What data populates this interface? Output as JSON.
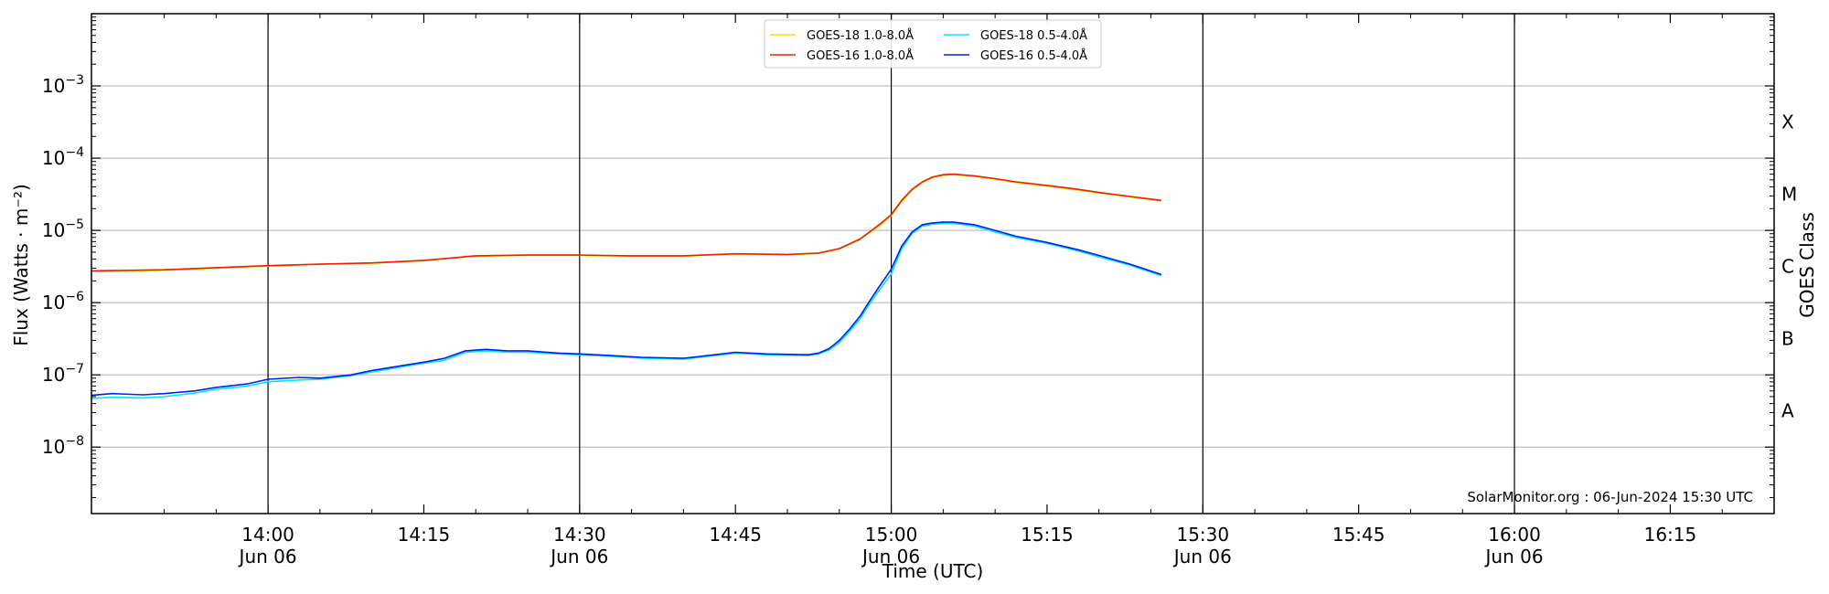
{
  "chart_data": {
    "type": "line",
    "xlabel": "Time (UTC)",
    "ylabel": "Flux (Watts · m⁻²)",
    "right_label": "GOES Class",
    "credit": "SolarMonitor.org : 06-Jun-2024 15:30 UTC",
    "x_range": [
      "13:43",
      "16:25"
    ],
    "y_range": [
      1.2e-09,
      0.01
    ],
    "y_scale": "log",
    "y_ticks": [
      {
        "value": 1e-08,
        "base": "10",
        "exp": "−8"
      },
      {
        "value": 1e-07,
        "base": "10",
        "exp": "−7"
      },
      {
        "value": 1e-06,
        "base": "10",
        "exp": "−6"
      },
      {
        "value": 1e-05,
        "base": "10",
        "exp": "−5"
      },
      {
        "value": 0.0001,
        "base": "10",
        "exp": "−4"
      },
      {
        "value": 0.001,
        "base": "10",
        "exp": "−3"
      }
    ],
    "x_ticks": [
      {
        "time": "14:00",
        "label": "14:00",
        "sub": "Jun 06",
        "vline": true
      },
      {
        "time": "14:15",
        "label": "14:15",
        "sub": "",
        "vline": false
      },
      {
        "time": "14:30",
        "label": "14:30",
        "sub": "Jun 06",
        "vline": true
      },
      {
        "time": "14:45",
        "label": "14:45",
        "sub": "",
        "vline": false
      },
      {
        "time": "15:00",
        "label": "15:00",
        "sub": "Jun 06",
        "vline": true
      },
      {
        "time": "15:15",
        "label": "15:15",
        "sub": "",
        "vline": false
      },
      {
        "time": "15:30",
        "label": "15:30",
        "sub": "Jun 06",
        "vline": true
      },
      {
        "time": "15:45",
        "label": "15:45",
        "sub": "",
        "vline": false
      },
      {
        "time": "16:00",
        "label": "16:00",
        "sub": "Jun 06",
        "vline": true
      },
      {
        "time": "16:15",
        "label": "16:15",
        "sub": "",
        "vline": false
      }
    ],
    "classes": [
      {
        "label": "A",
        "value": 3.16e-08
      },
      {
        "label": "B",
        "value": 3.16e-07
      },
      {
        "label": "C",
        "value": 3.16e-06
      },
      {
        "label": "M",
        "value": 3.16e-05
      },
      {
        "label": "X",
        "value": 0.000316
      }
    ],
    "grid": "horizontal",
    "legend_position": "top-center",
    "legend": [
      {
        "series": 0,
        "label": "GOES-18 1.0-8.0Å"
      },
      {
        "series": 2,
        "label": "GOES-18 0.5-4.0Å"
      },
      {
        "series": 1,
        "label": "GOES-16 1.0-8.0Å"
      },
      {
        "series": 3,
        "label": "GOES-16 0.5-4.0Å"
      }
    ],
    "series": [
      {
        "name": "GOES-18 1.0-8.0Å",
        "color": "#ffd700",
        "points": [
          [
            "13:43",
            2.7e-06
          ],
          [
            "13:50",
            2.8e-06
          ],
          [
            "13:55",
            3e-06
          ],
          [
            "14:00",
            3.2e-06
          ],
          [
            "14:05",
            3.4e-06
          ],
          [
            "14:10",
            3.5e-06
          ],
          [
            "14:15",
            3.8e-06
          ],
          [
            "14:20",
            4.4e-06
          ],
          [
            "14:25",
            4.5e-06
          ],
          [
            "14:30",
            4.5e-06
          ],
          [
            "14:35",
            4.4e-06
          ],
          [
            "14:40",
            4.4e-06
          ],
          [
            "14:45",
            4.7e-06
          ],
          [
            "14:50",
            4.6e-06
          ],
          [
            "14:53",
            4.8e-06
          ],
          [
            "14:55",
            5.5e-06
          ],
          [
            "14:57",
            7.5e-06
          ],
          [
            "14:59",
            1.2e-05
          ],
          [
            "15:00",
            1.6e-05
          ],
          [
            "15:01",
            2.5e-05
          ],
          [
            "15:02",
            3.6e-05
          ],
          [
            "15:03",
            4.6e-05
          ],
          [
            "15:04",
            5.4e-05
          ],
          [
            "15:05",
            5.8e-05
          ],
          [
            "15:06",
            5.9e-05
          ],
          [
            "15:08",
            5.6e-05
          ],
          [
            "15:10",
            5.1e-05
          ],
          [
            "15:12",
            4.6e-05
          ],
          [
            "15:15",
            4.1e-05
          ],
          [
            "15:18",
            3.6e-05
          ],
          [
            "15:20",
            3.3e-05
          ],
          [
            "15:23",
            2.9e-05
          ],
          [
            "15:26",
            2.55e-05
          ]
        ]
      },
      {
        "name": "GOES-16 1.0-8.0Å",
        "color": "#e8200c",
        "points": [
          [
            "13:43",
            2.75e-06
          ],
          [
            "13:50",
            2.85e-06
          ],
          [
            "13:55",
            3.05e-06
          ],
          [
            "14:00",
            3.25e-06
          ],
          [
            "14:05",
            3.4e-06
          ],
          [
            "14:10",
            3.55e-06
          ],
          [
            "14:15",
            3.85e-06
          ],
          [
            "14:20",
            4.45e-06
          ],
          [
            "14:25",
            4.55e-06
          ],
          [
            "14:30",
            4.55e-06
          ],
          [
            "14:35",
            4.45e-06
          ],
          [
            "14:40",
            4.45e-06
          ],
          [
            "14:45",
            4.75e-06
          ],
          [
            "14:50",
            4.65e-06
          ],
          [
            "14:53",
            4.85e-06
          ],
          [
            "14:55",
            5.6e-06
          ],
          [
            "14:57",
            7.6e-06
          ],
          [
            "14:59",
            1.25e-05
          ],
          [
            "15:00",
            1.65e-05
          ],
          [
            "15:01",
            2.6e-05
          ],
          [
            "15:02",
            3.7e-05
          ],
          [
            "15:03",
            4.7e-05
          ],
          [
            "15:04",
            5.5e-05
          ],
          [
            "15:05",
            5.9e-05
          ],
          [
            "15:06",
            6e-05
          ],
          [
            "15:08",
            5.7e-05
          ],
          [
            "15:10",
            5.2e-05
          ],
          [
            "15:12",
            4.7e-05
          ],
          [
            "15:15",
            4.2e-05
          ],
          [
            "15:18",
            3.7e-05
          ],
          [
            "15:20",
            3.35e-05
          ],
          [
            "15:23",
            2.95e-05
          ],
          [
            "15:26",
            2.6e-05
          ]
        ]
      },
      {
        "name": "GOES-18 0.5-4.0Å",
        "color": "#00e5ff",
        "points": [
          [
            "13:43",
            4.7e-08
          ],
          [
            "13:45",
            4.9e-08
          ],
          [
            "13:48",
            4.8e-08
          ],
          [
            "13:50",
            5e-08
          ],
          [
            "13:53",
            5.6e-08
          ],
          [
            "13:55",
            6.3e-08
          ],
          [
            "13:58",
            7e-08
          ],
          [
            "14:00",
            8e-08
          ],
          [
            "14:03",
            8.5e-08
          ],
          [
            "14:05",
            8.7e-08
          ],
          [
            "14:08",
            9.8e-08
          ],
          [
            "14:10",
            1.1e-07
          ],
          [
            "14:13",
            1.3e-07
          ],
          [
            "14:15",
            1.45e-07
          ],
          [
            "14:17",
            1.6e-07
          ],
          [
            "14:19",
            2.05e-07
          ],
          [
            "14:21",
            2.15e-07
          ],
          [
            "14:23",
            2.05e-07
          ],
          [
            "14:25",
            2.05e-07
          ],
          [
            "14:28",
            1.95e-07
          ],
          [
            "14:30",
            1.9e-07
          ],
          [
            "14:33",
            1.8e-07
          ],
          [
            "14:36",
            1.7e-07
          ],
          [
            "14:40",
            1.65e-07
          ],
          [
            "14:43",
            1.85e-07
          ],
          [
            "14:45",
            2e-07
          ],
          [
            "14:48",
            1.9e-07
          ],
          [
            "14:52",
            1.85e-07
          ],
          [
            "14:53",
            1.95e-07
          ],
          [
            "14:54",
            2.2e-07
          ],
          [
            "14:55",
            2.8e-07
          ],
          [
            "14:56",
            4e-07
          ],
          [
            "14:57",
            6e-07
          ],
          [
            "14:58",
            1e-06
          ],
          [
            "14:59",
            1.6e-06
          ],
          [
            "15:00",
            2.5e-06
          ],
          [
            "15:01",
            5.5e-06
          ],
          [
            "15:02",
            9e-06
          ],
          [
            "15:03",
            1.15e-05
          ],
          [
            "15:04",
            1.22e-05
          ],
          [
            "15:05",
            1.25e-05
          ],
          [
            "15:06",
            1.25e-05
          ],
          [
            "15:08",
            1.15e-05
          ],
          [
            "15:10",
            9.5e-06
          ],
          [
            "15:12",
            8e-06
          ],
          [
            "15:15",
            6.6e-06
          ],
          [
            "15:18",
            5.2e-06
          ],
          [
            "15:20",
            4.3e-06
          ],
          [
            "15:23",
            3.3e-06
          ],
          [
            "15:26",
            2.35e-06
          ]
        ]
      },
      {
        "name": "GOES-16 0.5-4.0Å",
        "color": "#0022ee",
        "points": [
          [
            "13:43",
            5.2e-08
          ],
          [
            "13:45",
            5.5e-08
          ],
          [
            "13:48",
            5.3e-08
          ],
          [
            "13:50",
            5.5e-08
          ],
          [
            "13:53",
            6e-08
          ],
          [
            "13:55",
            6.7e-08
          ],
          [
            "13:58",
            7.5e-08
          ],
          [
            "14:00",
            8.7e-08
          ],
          [
            "14:03",
            9.2e-08
          ],
          [
            "14:05",
            9e-08
          ],
          [
            "14:08",
            1e-07
          ],
          [
            "14:10",
            1.15e-07
          ],
          [
            "14:13",
            1.35e-07
          ],
          [
            "14:15",
            1.5e-07
          ],
          [
            "14:17",
            1.7e-07
          ],
          [
            "14:19",
            2.15e-07
          ],
          [
            "14:21",
            2.25e-07
          ],
          [
            "14:23",
            2.15e-07
          ],
          [
            "14:25",
            2.15e-07
          ],
          [
            "14:28",
            2e-07
          ],
          [
            "14:30",
            1.95e-07
          ],
          [
            "14:33",
            1.85e-07
          ],
          [
            "14:36",
            1.75e-07
          ],
          [
            "14:40",
            1.7e-07
          ],
          [
            "14:43",
            1.9e-07
          ],
          [
            "14:45",
            2.05e-07
          ],
          [
            "14:48",
            1.95e-07
          ],
          [
            "14:52",
            1.9e-07
          ],
          [
            "14:53",
            2e-07
          ],
          [
            "14:54",
            2.3e-07
          ],
          [
            "14:55",
            3e-07
          ],
          [
            "14:56",
            4.3e-07
          ],
          [
            "14:57",
            6.5e-07
          ],
          [
            "14:58",
            1.1e-06
          ],
          [
            "14:59",
            1.8e-06
          ],
          [
            "15:00",
            2.9e-06
          ],
          [
            "15:01",
            6e-06
          ],
          [
            "15:02",
            9.5e-06
          ],
          [
            "15:03",
            1.2e-05
          ],
          [
            "15:04",
            1.27e-05
          ],
          [
            "15:05",
            1.3e-05
          ],
          [
            "15:06",
            1.3e-05
          ],
          [
            "15:08",
            1.2e-05
          ],
          [
            "15:10",
            1e-05
          ],
          [
            "15:12",
            8.3e-06
          ],
          [
            "15:15",
            6.8e-06
          ],
          [
            "15:18",
            5.4e-06
          ],
          [
            "15:20",
            4.5e-06
          ],
          [
            "15:23",
            3.4e-06
          ],
          [
            "15:26",
            2.45e-06
          ]
        ]
      }
    ]
  }
}
